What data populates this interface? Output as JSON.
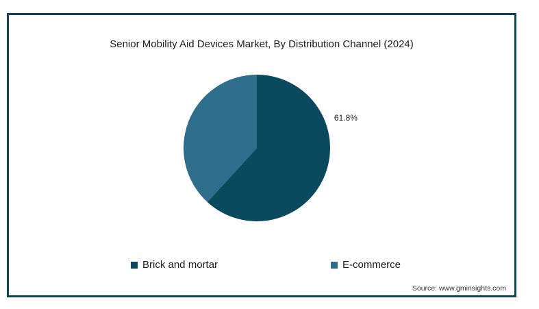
{
  "chart_data": {
    "type": "pie",
    "title": "Senior Mobility Aid Devices Market, By Distribution Channel (2024)",
    "slices": [
      {
        "name": "Brick and mortar",
        "value": 61.8,
        "label": "61.8%",
        "color": "#0b4a5e"
      },
      {
        "name": "E-commerce",
        "value": 38.2,
        "label": "",
        "color": "#2e6d8c"
      }
    ],
    "legend": {
      "position": "bottom"
    }
  },
  "source": "Source: www.gminsights.com"
}
